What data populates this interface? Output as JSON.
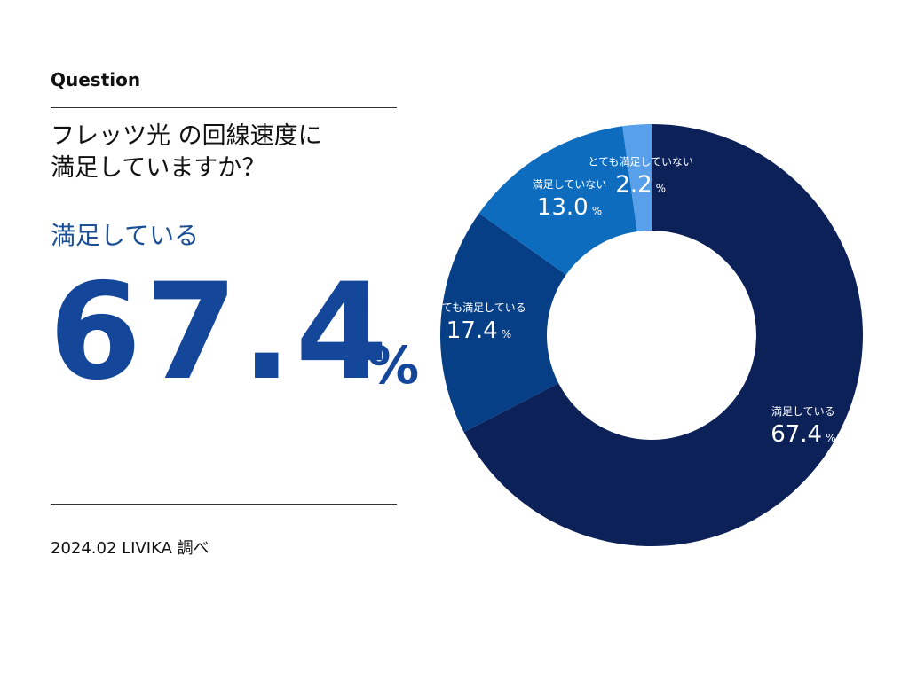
{
  "header": {
    "question_label": "Question",
    "question_text_line1": "フレッツ光 の回線速度に",
    "question_text_line2": "満足していますか？"
  },
  "highlight": {
    "label": "満足している",
    "value": "67.4",
    "unit": "%"
  },
  "footer": {
    "source": "2024.02 LIVIKA 調べ"
  },
  "colors": {
    "accent": "#14469a",
    "slice_satisfied": "#0c2158",
    "slice_very_satisfied": "#073f86",
    "slice_not_satisfied": "#0e6cbf",
    "slice_very_not_satisfied": "#58a0ea"
  },
  "chart_data": {
    "type": "pie",
    "donut": true,
    "title": "",
    "slices": [
      {
        "label": "満足している",
        "value": 67.4,
        "display": "67.4",
        "unit": "%",
        "color": "#0c2158"
      },
      {
        "label": "とても満足している",
        "value": 17.4,
        "display": "17.4",
        "unit": "%",
        "color": "#073f86"
      },
      {
        "label": "満足していない",
        "value": 13.0,
        "display": "13.0",
        "unit": "%",
        "color": "#0e6cbf"
      },
      {
        "label": "とても満足していない",
        "value": 2.2,
        "display": "2.2",
        "unit": "%",
        "color": "#58a0ea"
      }
    ],
    "start": "12 o'clock",
    "direction": "clockwise"
  }
}
